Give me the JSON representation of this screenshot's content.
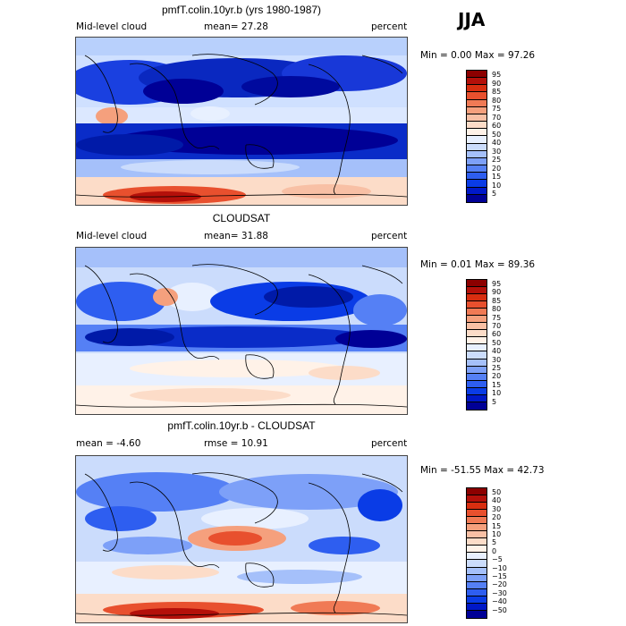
{
  "season": "JJA",
  "colorbar_palettes": {
    "cloud": [
      "#000096",
      "#0018c8",
      "#0a3ce6",
      "#2e5ef0",
      "#5580f5",
      "#7da0f8",
      "#a5c0fa",
      "#cbdcfc",
      "#e8f0ff",
      "#fff2e8",
      "#fcdcc8",
      "#f8c0a5",
      "#f5a07d",
      "#f07a55",
      "#e8502e",
      "#d82e10",
      "#b4100a",
      "#8c0000"
    ],
    "diff": [
      "#000096",
      "#0018c8",
      "#0a3ce6",
      "#2e5ef0",
      "#5580f5",
      "#7da0f8",
      "#a5c0fa",
      "#cbdcfc",
      "#e8f0ff",
      "#fff2e8",
      "#fcdcc8",
      "#f8c0a5",
      "#f5a07d",
      "#f07a55",
      "#e8502e",
      "#d82e10",
      "#b4100a",
      "#8c0000"
    ]
  },
  "panels": [
    {
      "title": "pmfT.colin.10yr.b (yrs 1980-1987)",
      "left_label": "Mid-level cloud",
      "mean_label": "mean=  27.28",
      "right_label": "percent",
      "minmax": "Min =   0.00 Max =  97.26",
      "colorbar_ticks": [
        "95",
        "90",
        "85",
        "80",
        "75",
        "70",
        "60",
        "50",
        "40",
        "30",
        "25",
        "20",
        "15",
        "10",
        "5"
      ]
    },
    {
      "title": "CLOUDSAT",
      "left_label": "Mid-level cloud",
      "mean_label": "mean=  31.88",
      "right_label": "percent",
      "minmax": "Min =   0.01 Max =  89.36",
      "colorbar_ticks": [
        "95",
        "90",
        "85",
        "80",
        "75",
        "70",
        "60",
        "50",
        "40",
        "30",
        "25",
        "20",
        "15",
        "10",
        "5"
      ]
    },
    {
      "title": "pmfT.colin.10yr.b - CLOUDSAT",
      "left_label": "mean =  -4.60",
      "mean_label": "rmse =  10.91",
      "right_label": "percent",
      "minmax": "Min = -51.55 Max =  42.73",
      "colorbar_ticks": [
        "50",
        "40",
        "30",
        "20",
        "15",
        "10",
        "5",
        "0",
        "−5",
        "−10",
        "−15",
        "−20",
        "−30",
        "−40",
        "−50"
      ]
    }
  ]
}
